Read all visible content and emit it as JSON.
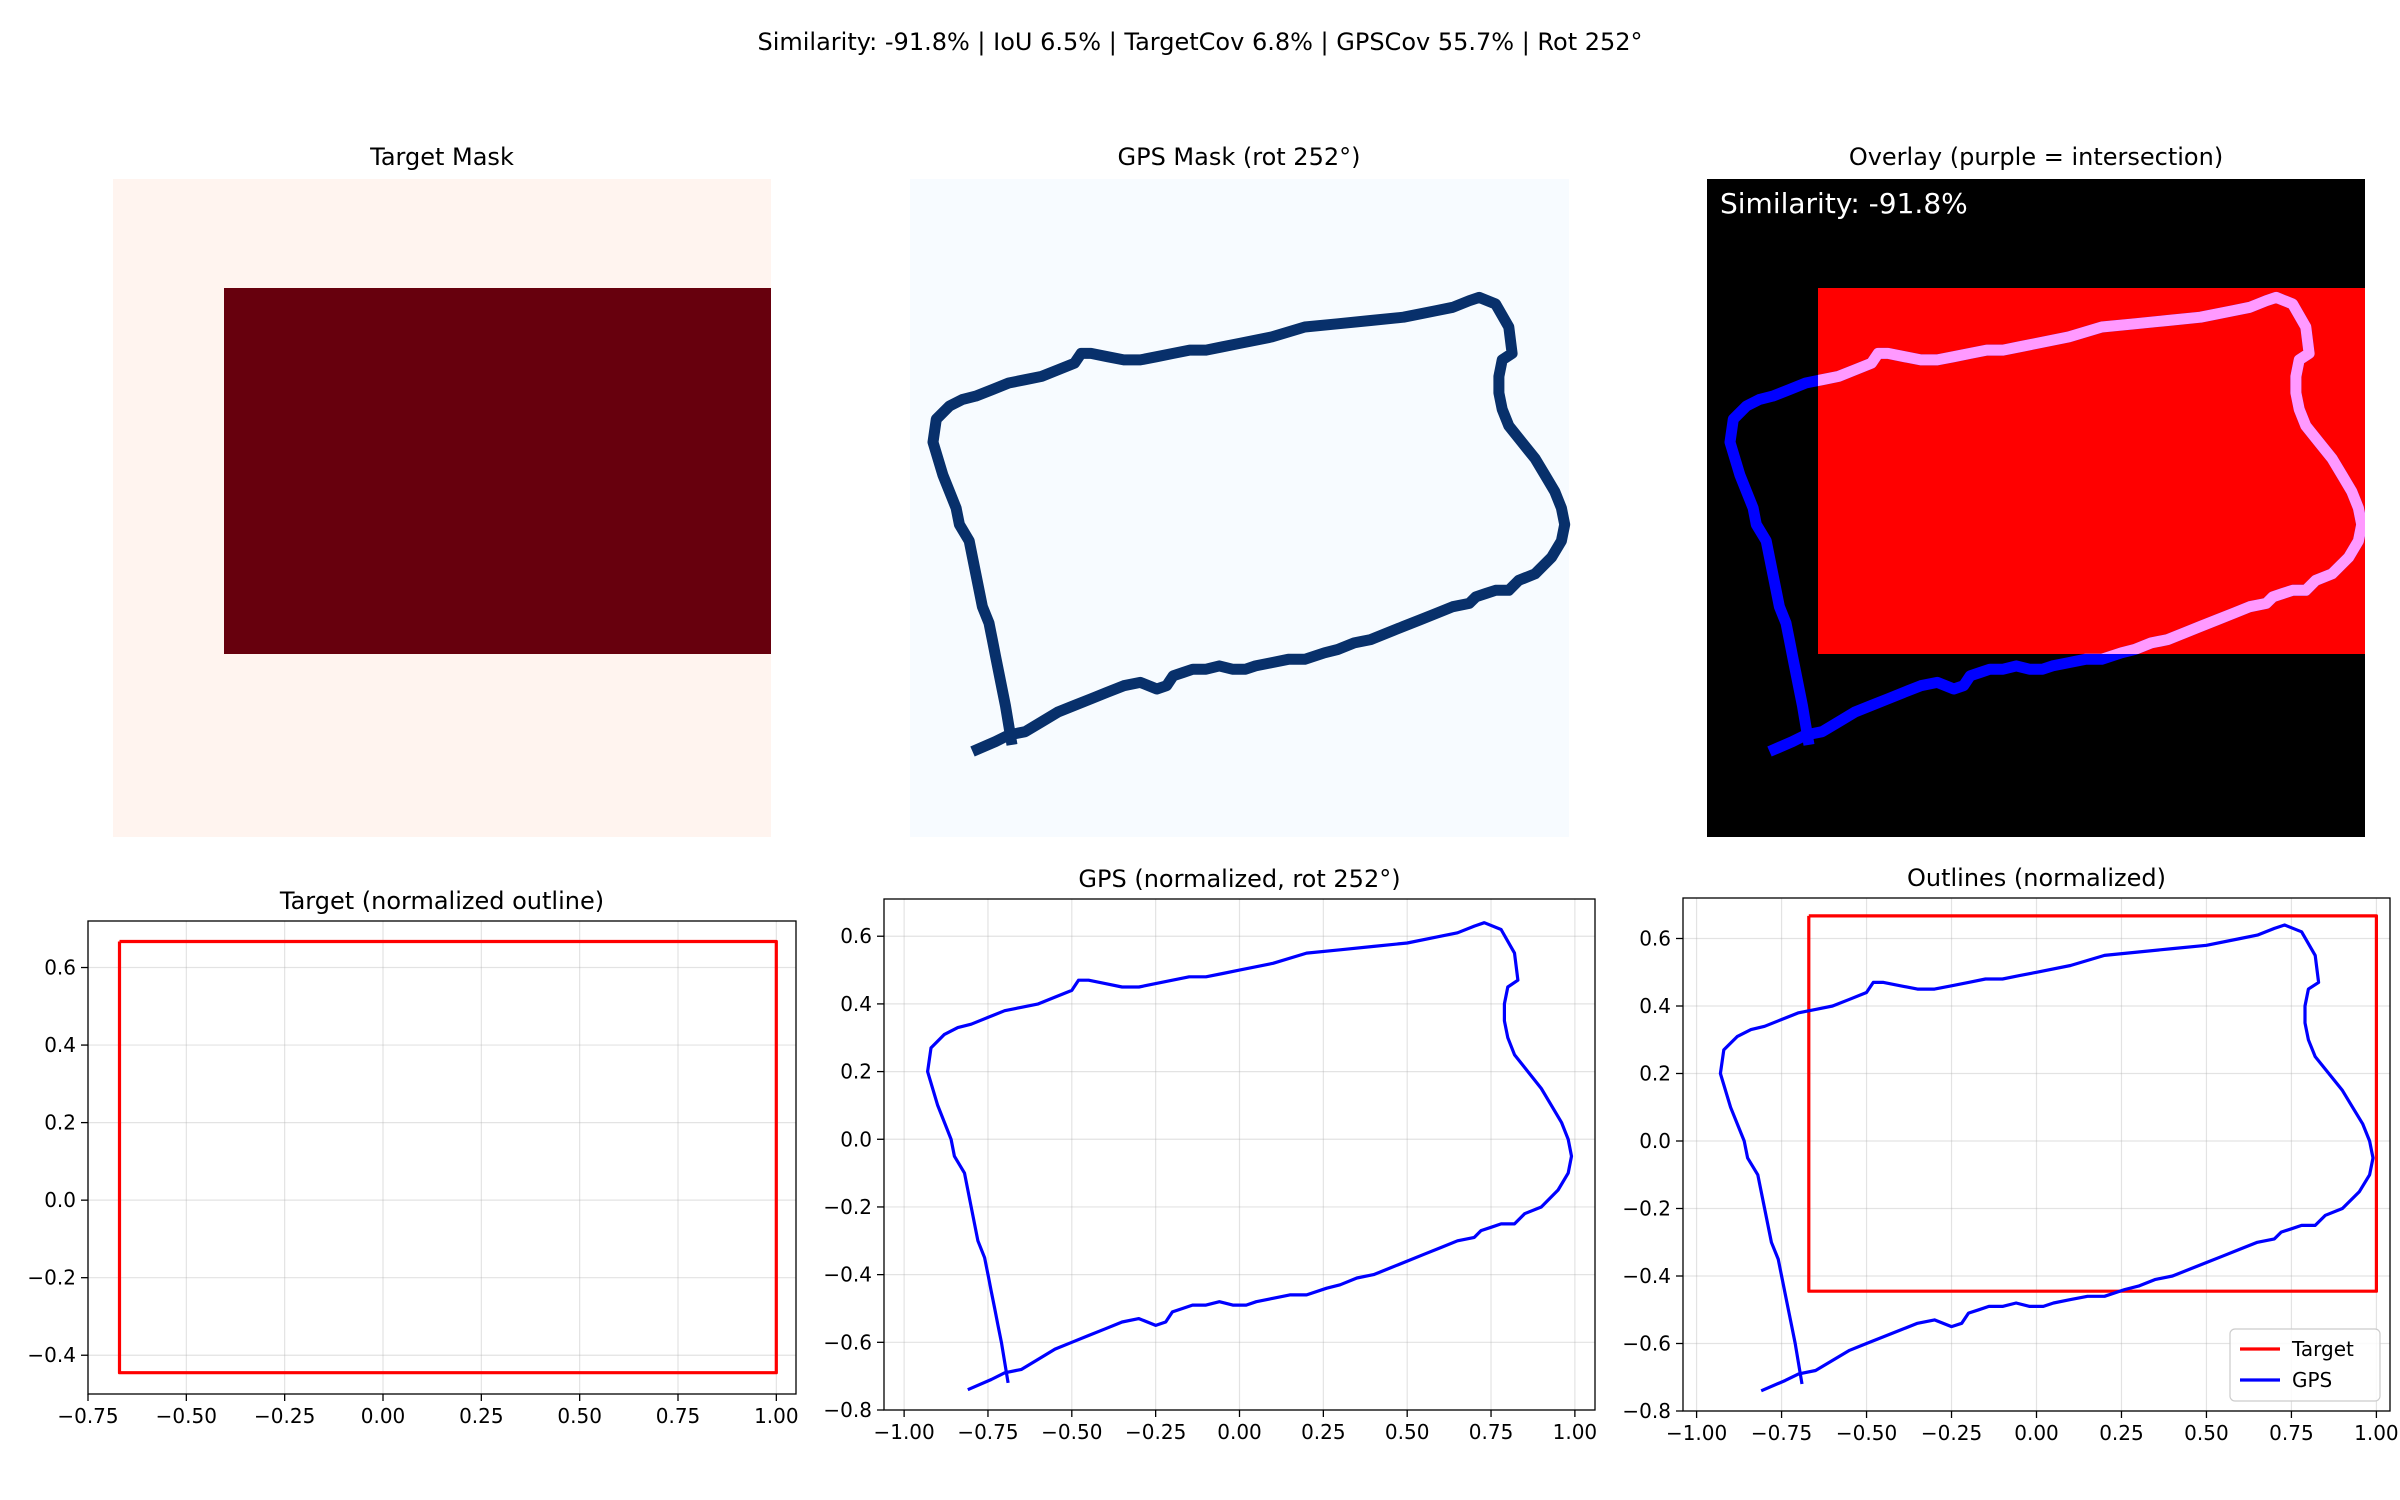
{
  "suptitle": "Similarity: -91.8% | IoU 6.5% | TargetCov 6.8% | GPSCov 55.7% | Rot 252°",
  "colors": {
    "target_bg": "#fff4ef",
    "target_fill": "#67000d",
    "gps_bg": "#f7fbff",
    "gps_track": "#08306b",
    "overlay_bg": "#000000",
    "overlay_target": "#ff0000",
    "overlay_gps": "#0000ff",
    "overlay_intersection": "#ff99ff",
    "target_line": "#ff0000",
    "gps_line": "#0000ff"
  },
  "top_panels": {
    "target_mask_title": "Target Mask",
    "gps_mask_title": "GPS Mask (rot 252°)",
    "overlay_title": "Overlay (purple = intersection)",
    "overlay_annotation": "Similarity: -91.8%"
  },
  "chart_data": [
    {
      "type": "line",
      "title": "Target (normalized outline)",
      "xlim": [
        -0.75,
        1.05
      ],
      "ylim": [
        -0.5,
        0.72
      ],
      "xticks": [
        -0.75,
        -0.5,
        -0.25,
        0.0,
        0.25,
        0.5,
        0.75,
        1.0
      ],
      "xtick_labels": [
        "−0.75",
        "−0.50",
        "−0.25",
        "0.00",
        "0.25",
        "0.50",
        "0.75",
        "1.00"
      ],
      "yticks": [
        -0.4,
        -0.2,
        0.0,
        0.2,
        0.4,
        0.6
      ],
      "ytick_labels": [
        "−0.4",
        "−0.2",
        "0.0",
        "0.2",
        "0.4",
        "0.6"
      ],
      "grid": true,
      "series": [
        {
          "color": "#ff0000",
          "x": [
            -0.67,
            1.0,
            1.0,
            -0.67,
            -0.67
          ],
          "y": [
            0.667,
            0.667,
            -0.445,
            -0.445,
            0.667
          ]
        }
      ]
    },
    {
      "type": "line",
      "title": "GPS (normalized, rot 252°)",
      "xlim": [
        -1.06,
        1.06
      ],
      "ylim": [
        -0.8,
        0.71
      ],
      "xticks": [
        -1.0,
        -0.75,
        -0.5,
        -0.25,
        0.0,
        0.25,
        0.5,
        0.75,
        1.0
      ],
      "xtick_labels": [
        "−1.00",
        "−0.75",
        "−0.50",
        "−0.25",
        "0.00",
        "0.25",
        "0.50",
        "0.75",
        "1.00"
      ],
      "yticks": [
        -0.8,
        -0.6,
        -0.4,
        -0.2,
        0.0,
        0.2,
        0.4,
        0.6
      ],
      "ytick_labels": [
        "−0.8",
        "−0.6",
        "−0.4",
        "−0.2",
        "0.0",
        "0.2",
        "0.4",
        "0.6"
      ],
      "grid": true,
      "series": [
        {
          "color": "#0000ff",
          "x": [
            -0.81,
            -0.74,
            -0.7,
            -0.65,
            -0.6,
            -0.55,
            -0.5,
            -0.45,
            -0.4,
            -0.35,
            -0.3,
            -0.25,
            -0.22,
            -0.2,
            -0.17,
            -0.14,
            -0.1,
            -0.06,
            -0.02,
            0.02,
            0.05,
            0.1,
            0.15,
            0.2,
            0.26,
            0.3,
            0.35,
            0.4,
            0.45,
            0.5,
            0.55,
            0.6,
            0.65,
            0.7,
            0.72,
            0.75,
            0.78,
            0.82,
            0.85,
            0.9,
            0.95,
            0.98,
            0.99,
            0.98,
            0.96,
            0.93,
            0.9,
            0.86,
            0.82,
            0.8,
            0.79,
            0.79,
            0.8,
            0.83,
            0.82,
            0.78,
            0.73,
            0.7,
            0.65,
            0.6,
            0.5,
            0.4,
            0.3,
            0.2,
            0.1,
            0.0,
            -0.05,
            -0.1,
            -0.15,
            -0.2,
            -0.25,
            -0.3,
            -0.35,
            -0.4,
            -0.45,
            -0.48,
            -0.5,
            -0.55,
            -0.6,
            -0.65,
            -0.7,
            -0.75,
            -0.8,
            -0.84,
            -0.88,
            -0.92,
            -0.93,
            -0.9,
            -0.86,
            -0.85,
            -0.82,
            -0.8,
            -0.78,
            -0.76,
            -0.75,
            -0.74,
            -0.73,
            -0.72,
            -0.71,
            -0.69
          ],
          "y": [
            -0.74,
            -0.71,
            -0.69,
            -0.68,
            -0.65,
            -0.62,
            -0.6,
            -0.58,
            -0.56,
            -0.54,
            -0.53,
            -0.55,
            -0.54,
            -0.51,
            -0.5,
            -0.49,
            -0.49,
            -0.48,
            -0.49,
            -0.49,
            -0.48,
            -0.47,
            -0.46,
            -0.46,
            -0.44,
            -0.43,
            -0.41,
            -0.4,
            -0.38,
            -0.36,
            -0.34,
            -0.32,
            -0.3,
            -0.29,
            -0.27,
            -0.26,
            -0.25,
            -0.25,
            -0.22,
            -0.2,
            -0.15,
            -0.1,
            -0.05,
            0.0,
            0.05,
            0.1,
            0.15,
            0.2,
            0.25,
            0.3,
            0.35,
            0.4,
            0.45,
            0.47,
            0.55,
            0.62,
            0.64,
            0.63,
            0.61,
            0.6,
            0.58,
            0.57,
            0.56,
            0.55,
            0.52,
            0.5,
            0.49,
            0.48,
            0.48,
            0.47,
            0.46,
            0.45,
            0.45,
            0.46,
            0.47,
            0.47,
            0.44,
            0.42,
            0.4,
            0.39,
            0.38,
            0.36,
            0.34,
            0.33,
            0.31,
            0.27,
            0.2,
            0.1,
            0.0,
            -0.05,
            -0.1,
            -0.2,
            -0.3,
            -0.35,
            -0.4,
            -0.45,
            -0.5,
            -0.55,
            -0.6,
            -0.72
          ]
        }
      ]
    },
    {
      "type": "line",
      "title": "Outlines (normalized)",
      "xlim": [
        -1.04,
        1.04
      ],
      "ylim": [
        -0.8,
        0.72
      ],
      "xticks": [
        -1.0,
        -0.75,
        -0.5,
        -0.25,
        0.0,
        0.25,
        0.5,
        0.75,
        1.0
      ],
      "xtick_labels": [
        "−1.00",
        "−0.75",
        "−0.50",
        "−0.25",
        "0.00",
        "0.25",
        "0.50",
        "0.75",
        "1.00"
      ],
      "yticks": [
        -0.8,
        -0.6,
        -0.4,
        -0.2,
        0.0,
        0.2,
        0.4,
        0.6
      ],
      "ytick_labels": [
        "−0.8",
        "−0.6",
        "−0.4",
        "−0.2",
        "0.0",
        "0.2",
        "0.4",
        "0.6"
      ],
      "grid": true,
      "legend": "lower-right",
      "series": [
        {
          "name": "Target",
          "color": "#ff0000",
          "x": [
            -0.67,
            1.0,
            1.0,
            -0.67,
            -0.67
          ],
          "y": [
            0.667,
            0.667,
            -0.445,
            -0.445,
            0.667
          ]
        },
        {
          "name": "GPS",
          "color": "#0000ff",
          "same_as_panel": 1
        }
      ]
    }
  ]
}
